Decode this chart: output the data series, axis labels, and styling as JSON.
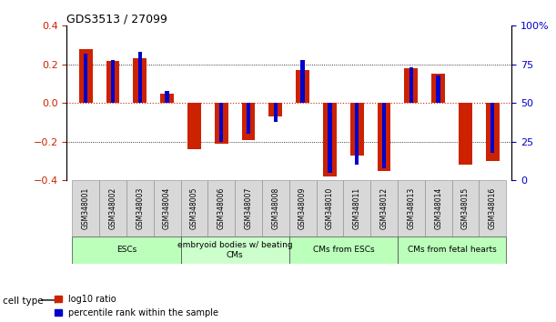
{
  "title": "GDS3513 / 27099",
  "samples": [
    "GSM348001",
    "GSM348002",
    "GSM348003",
    "GSM348004",
    "GSM348005",
    "GSM348006",
    "GSM348007",
    "GSM348008",
    "GSM348009",
    "GSM348010",
    "GSM348011",
    "GSM348012",
    "GSM348013",
    "GSM348014",
    "GSM348015",
    "GSM348016"
  ],
  "log10_ratio": [
    0.28,
    0.22,
    0.23,
    0.05,
    -0.24,
    -0.21,
    -0.19,
    -0.07,
    0.17,
    -0.38,
    -0.27,
    -0.35,
    0.18,
    0.15,
    -0.32,
    -0.3
  ],
  "pct_rank": [
    82,
    78,
    83,
    58,
    50,
    25,
    30,
    38,
    78,
    5,
    10,
    8,
    73,
    68,
    50,
    18
  ],
  "cell_types": [
    {
      "label": "ESCs",
      "start": 0,
      "end": 4,
      "color": "#bbffbb"
    },
    {
      "label": "embryoid bodies w/ beating\nCMs",
      "start": 4,
      "end": 8,
      "color": "#ccffcc"
    },
    {
      "label": "CMs from ESCs",
      "start": 8,
      "end": 12,
      "color": "#bbffbb"
    },
    {
      "label": "CMs from fetal hearts",
      "start": 12,
      "end": 16,
      "color": "#bbffbb"
    }
  ],
  "bar_color_red": "#cc2200",
  "bar_color_blue": "#0000cc",
  "ylim_left": [
    -0.4,
    0.4
  ],
  "ylim_right": [
    0,
    100
  ],
  "yticks_left": [
    -0.4,
    -0.2,
    0.0,
    0.2,
    0.4
  ],
  "yticks_right": [
    0,
    25,
    50,
    75,
    100
  ],
  "legend_red": "log10 ratio",
  "legend_blue": "percentile rank within the sample",
  "cell_type_label": "cell type"
}
